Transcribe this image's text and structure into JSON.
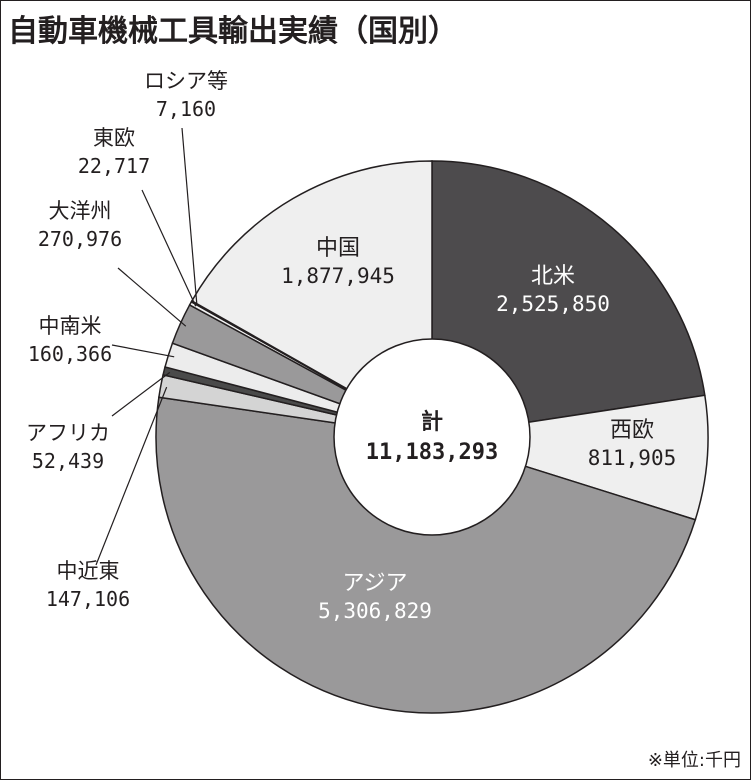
{
  "title": "自動車機械工具輸出実績（国別）",
  "unit_note": "※単位:千円",
  "colors": {
    "north_america": "#4d4b4d",
    "west_europe": "#efefef",
    "asia": "#9a999a",
    "middle_east": "#d4d4d4",
    "africa": "#4a4a4a",
    "latin_america": "#ececec",
    "oceania": "#9a999a",
    "east_europe": "#f2f2f2",
    "russia": "#555555",
    "china": "#efefef",
    "stroke": "#231f20"
  },
  "chart_data": {
    "type": "pie",
    "donut": true,
    "center_label": "計",
    "center_value": "11,183,293",
    "slices": [
      {
        "key": "north_america",
        "label": "北米",
        "value_text": "2,525,850",
        "value": 2525850,
        "label_color": "#ffffff"
      },
      {
        "key": "west_europe",
        "label": "西欧",
        "value_text": "811,905",
        "value": 811905
      },
      {
        "key": "asia",
        "label": "アジア",
        "value_text": "5,306,829",
        "value": 5306829,
        "label_color": "#ffffff"
      },
      {
        "key": "middle_east",
        "label": "中近東",
        "value_text": "147,106",
        "value": 147106
      },
      {
        "key": "africa",
        "label": "アフリカ",
        "value_text": "52,439",
        "value": 52439
      },
      {
        "key": "latin_america",
        "label": "中南米",
        "value_text": "160,366",
        "value": 160366
      },
      {
        "key": "oceania",
        "label": "大洋州",
        "value_text": "270,976",
        "value": 270976
      },
      {
        "key": "east_europe",
        "label": "東欧",
        "value_text": "22,717",
        "value": 22717
      },
      {
        "key": "russia",
        "label": "ロシア等",
        "value_text": "7,160",
        "value": 7160
      },
      {
        "key": "china",
        "label": "中国",
        "value_text": "1,877,945",
        "value": 1877945
      }
    ]
  }
}
